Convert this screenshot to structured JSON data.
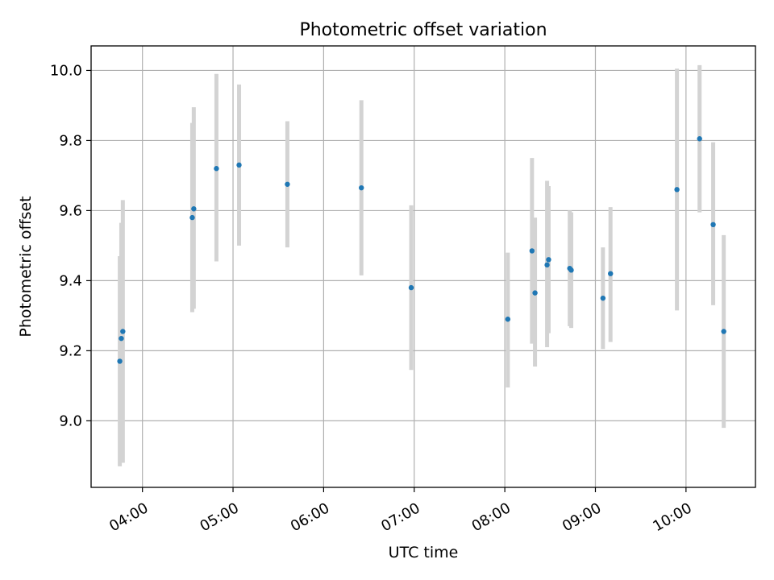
{
  "chart_data": {
    "type": "scatter",
    "title": "Photometric offset variation",
    "xlabel": "UTC time",
    "ylabel": "Photometric offset",
    "x_tick_labels": [
      "04:00",
      "05:00",
      "06:00",
      "07:00",
      "08:00",
      "09:00",
      "10:00"
    ],
    "y_tick_labels": [
      "9.0",
      "9.2",
      "9.4",
      "9.6",
      "9.8",
      "10.0"
    ],
    "y_ticks": [
      9.0,
      9.2,
      9.4,
      9.6,
      9.8,
      10.0
    ],
    "xlim": [
      "03:26",
      "10:46"
    ],
    "ylim": [
      8.81,
      10.07
    ],
    "grid": true,
    "point_color": "#1f77b4",
    "errorbar_color": "#d3d3d3",
    "series": [
      {
        "points": [
          {
            "time": "03:45",
            "y": 9.17,
            "ylow": 8.87,
            "yhigh": 9.47
          },
          {
            "time": "03:46",
            "y": 9.235,
            "ylow": 8.9,
            "yhigh": 9.565
          },
          {
            "time": "03:47",
            "y": 9.255,
            "ylow": 8.88,
            "yhigh": 9.63
          },
          {
            "time": "04:33",
            "y": 9.58,
            "ylow": 9.31,
            "yhigh": 9.85
          },
          {
            "time": "04:34",
            "y": 9.605,
            "ylow": 9.32,
            "yhigh": 9.895
          },
          {
            "time": "04:49",
            "y": 9.72,
            "ylow": 9.455,
            "yhigh": 9.99
          },
          {
            "time": "05:04",
            "y": 9.73,
            "ylow": 9.5,
            "yhigh": 9.96
          },
          {
            "time": "05:36",
            "y": 9.675,
            "ylow": 9.495,
            "yhigh": 9.855
          },
          {
            "time": "06:25",
            "y": 9.665,
            "ylow": 9.415,
            "yhigh": 9.915
          },
          {
            "time": "06:58",
            "y": 9.38,
            "ylow": 9.145,
            "yhigh": 9.615
          },
          {
            "time": "08:02",
            "y": 9.29,
            "ylow": 9.095,
            "yhigh": 9.48
          },
          {
            "time": "08:18",
            "y": 9.485,
            "ylow": 9.22,
            "yhigh": 9.75
          },
          {
            "time": "08:20",
            "y": 9.365,
            "ylow": 9.155,
            "yhigh": 9.58
          },
          {
            "time": "08:28",
            "y": 9.445,
            "ylow": 9.21,
            "yhigh": 9.685
          },
          {
            "time": "08:29",
            "y": 9.46,
            "ylow": 9.25,
            "yhigh": 9.67
          },
          {
            "time": "08:43",
            "y": 9.435,
            "ylow": 9.27,
            "yhigh": 9.6
          },
          {
            "time": "08:44",
            "y": 9.43,
            "ylow": 9.265,
            "yhigh": 9.595
          },
          {
            "time": "09:05",
            "y": 9.35,
            "ylow": 9.205,
            "yhigh": 9.495
          },
          {
            "time": "09:10",
            "y": 9.42,
            "ylow": 9.225,
            "yhigh": 9.61
          },
          {
            "time": "09:54",
            "y": 9.66,
            "ylow": 9.315,
            "yhigh": 10.005
          },
          {
            "time": "10:09",
            "y": 9.805,
            "ylow": 9.595,
            "yhigh": 10.015
          },
          {
            "time": "10:18",
            "y": 9.56,
            "ylow": 9.33,
            "yhigh": 9.795
          },
          {
            "time": "10:25",
            "y": 9.255,
            "ylow": 8.98,
            "yhigh": 9.53
          }
        ]
      }
    ]
  }
}
